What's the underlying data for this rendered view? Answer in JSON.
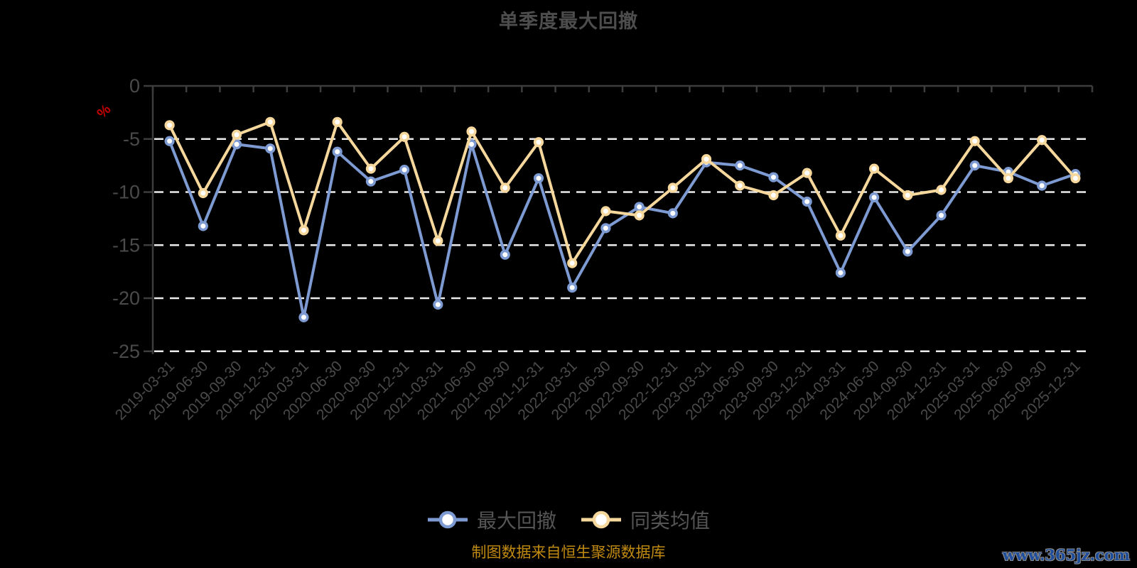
{
  "header": {
    "title": "单季度最大回撤"
  },
  "axis": {
    "unit": "%"
  },
  "footer": {
    "caption": "制图数据来自恒生聚源数据库",
    "watermark": "www.365jz.com"
  },
  "style": {
    "background": "#000000",
    "axis_line_color": "#3d3d3d",
    "tick_label_color": "#4a4a4a",
    "grid_line_color": "#ebebeb",
    "title_color": "#4d4d4d",
    "legend_text_color": "#555555",
    "unit_color": "#c40000",
    "caption_color": "#c18a10",
    "watermark_color": "#1f4e9c"
  },
  "chart_data": {
    "type": "line",
    "title": "单季度最大回撤",
    "ylabel": "%",
    "ylim": [
      -25,
      0
    ],
    "yticks": [
      0,
      -5,
      -10,
      -15,
      -20,
      -25
    ],
    "grid": "horizontal-dashed-white",
    "legend_position": "bottom",
    "x": [
      "2019-03-31",
      "2019-06-30",
      "2019-09-30",
      "2019-12-31",
      "2020-03-31",
      "2020-06-30",
      "2020-09-30",
      "2020-12-31",
      "2021-03-31",
      "2021-06-30",
      "2021-09-30",
      "2021-12-31",
      "2022-03-31",
      "2022-06-30",
      "2022-09-30",
      "2022-12-31",
      "2023-03-31",
      "2023-06-30",
      "2023-09-30",
      "2023-12-31",
      "2024-03-31",
      "2024-06-30",
      "2024-09-30",
      "2024-12-31",
      "2025-03-31",
      "2025-06-30",
      "2025-09-30",
      "2025-12-31"
    ],
    "series": [
      {
        "name": "最大回撤",
        "color": "#7d9bd2",
        "marker_fill": "#ffffff",
        "values": [
          -5.2,
          -13.2,
          -5.5,
          -5.9,
          -21.8,
          -6.2,
          -9.0,
          -7.9,
          -20.6,
          -5.5,
          -15.9,
          -8.7,
          -19.0,
          -13.4,
          -11.4,
          -12.0,
          -7.2,
          -7.5,
          -8.6,
          -10.9,
          -17.6,
          -10.5,
          -15.6,
          -12.2,
          -7.5,
          -8.1,
          -9.4,
          -8.3
        ]
      },
      {
        "name": "同类均值",
        "color": "#f6d79c",
        "marker_fill": "#ffffff",
        "values": [
          -3.7,
          -10.1,
          -4.6,
          -3.4,
          -13.6,
          -3.4,
          -7.8,
          -4.8,
          -14.6,
          -4.3,
          -9.6,
          -5.3,
          -16.7,
          -11.8,
          -12.2,
          -9.6,
          -6.9,
          -9.4,
          -10.3,
          -8.2,
          -14.1,
          -7.8,
          -10.3,
          -9.8,
          -5.2,
          -8.7,
          -5.1,
          -8.7
        ]
      }
    ]
  }
}
